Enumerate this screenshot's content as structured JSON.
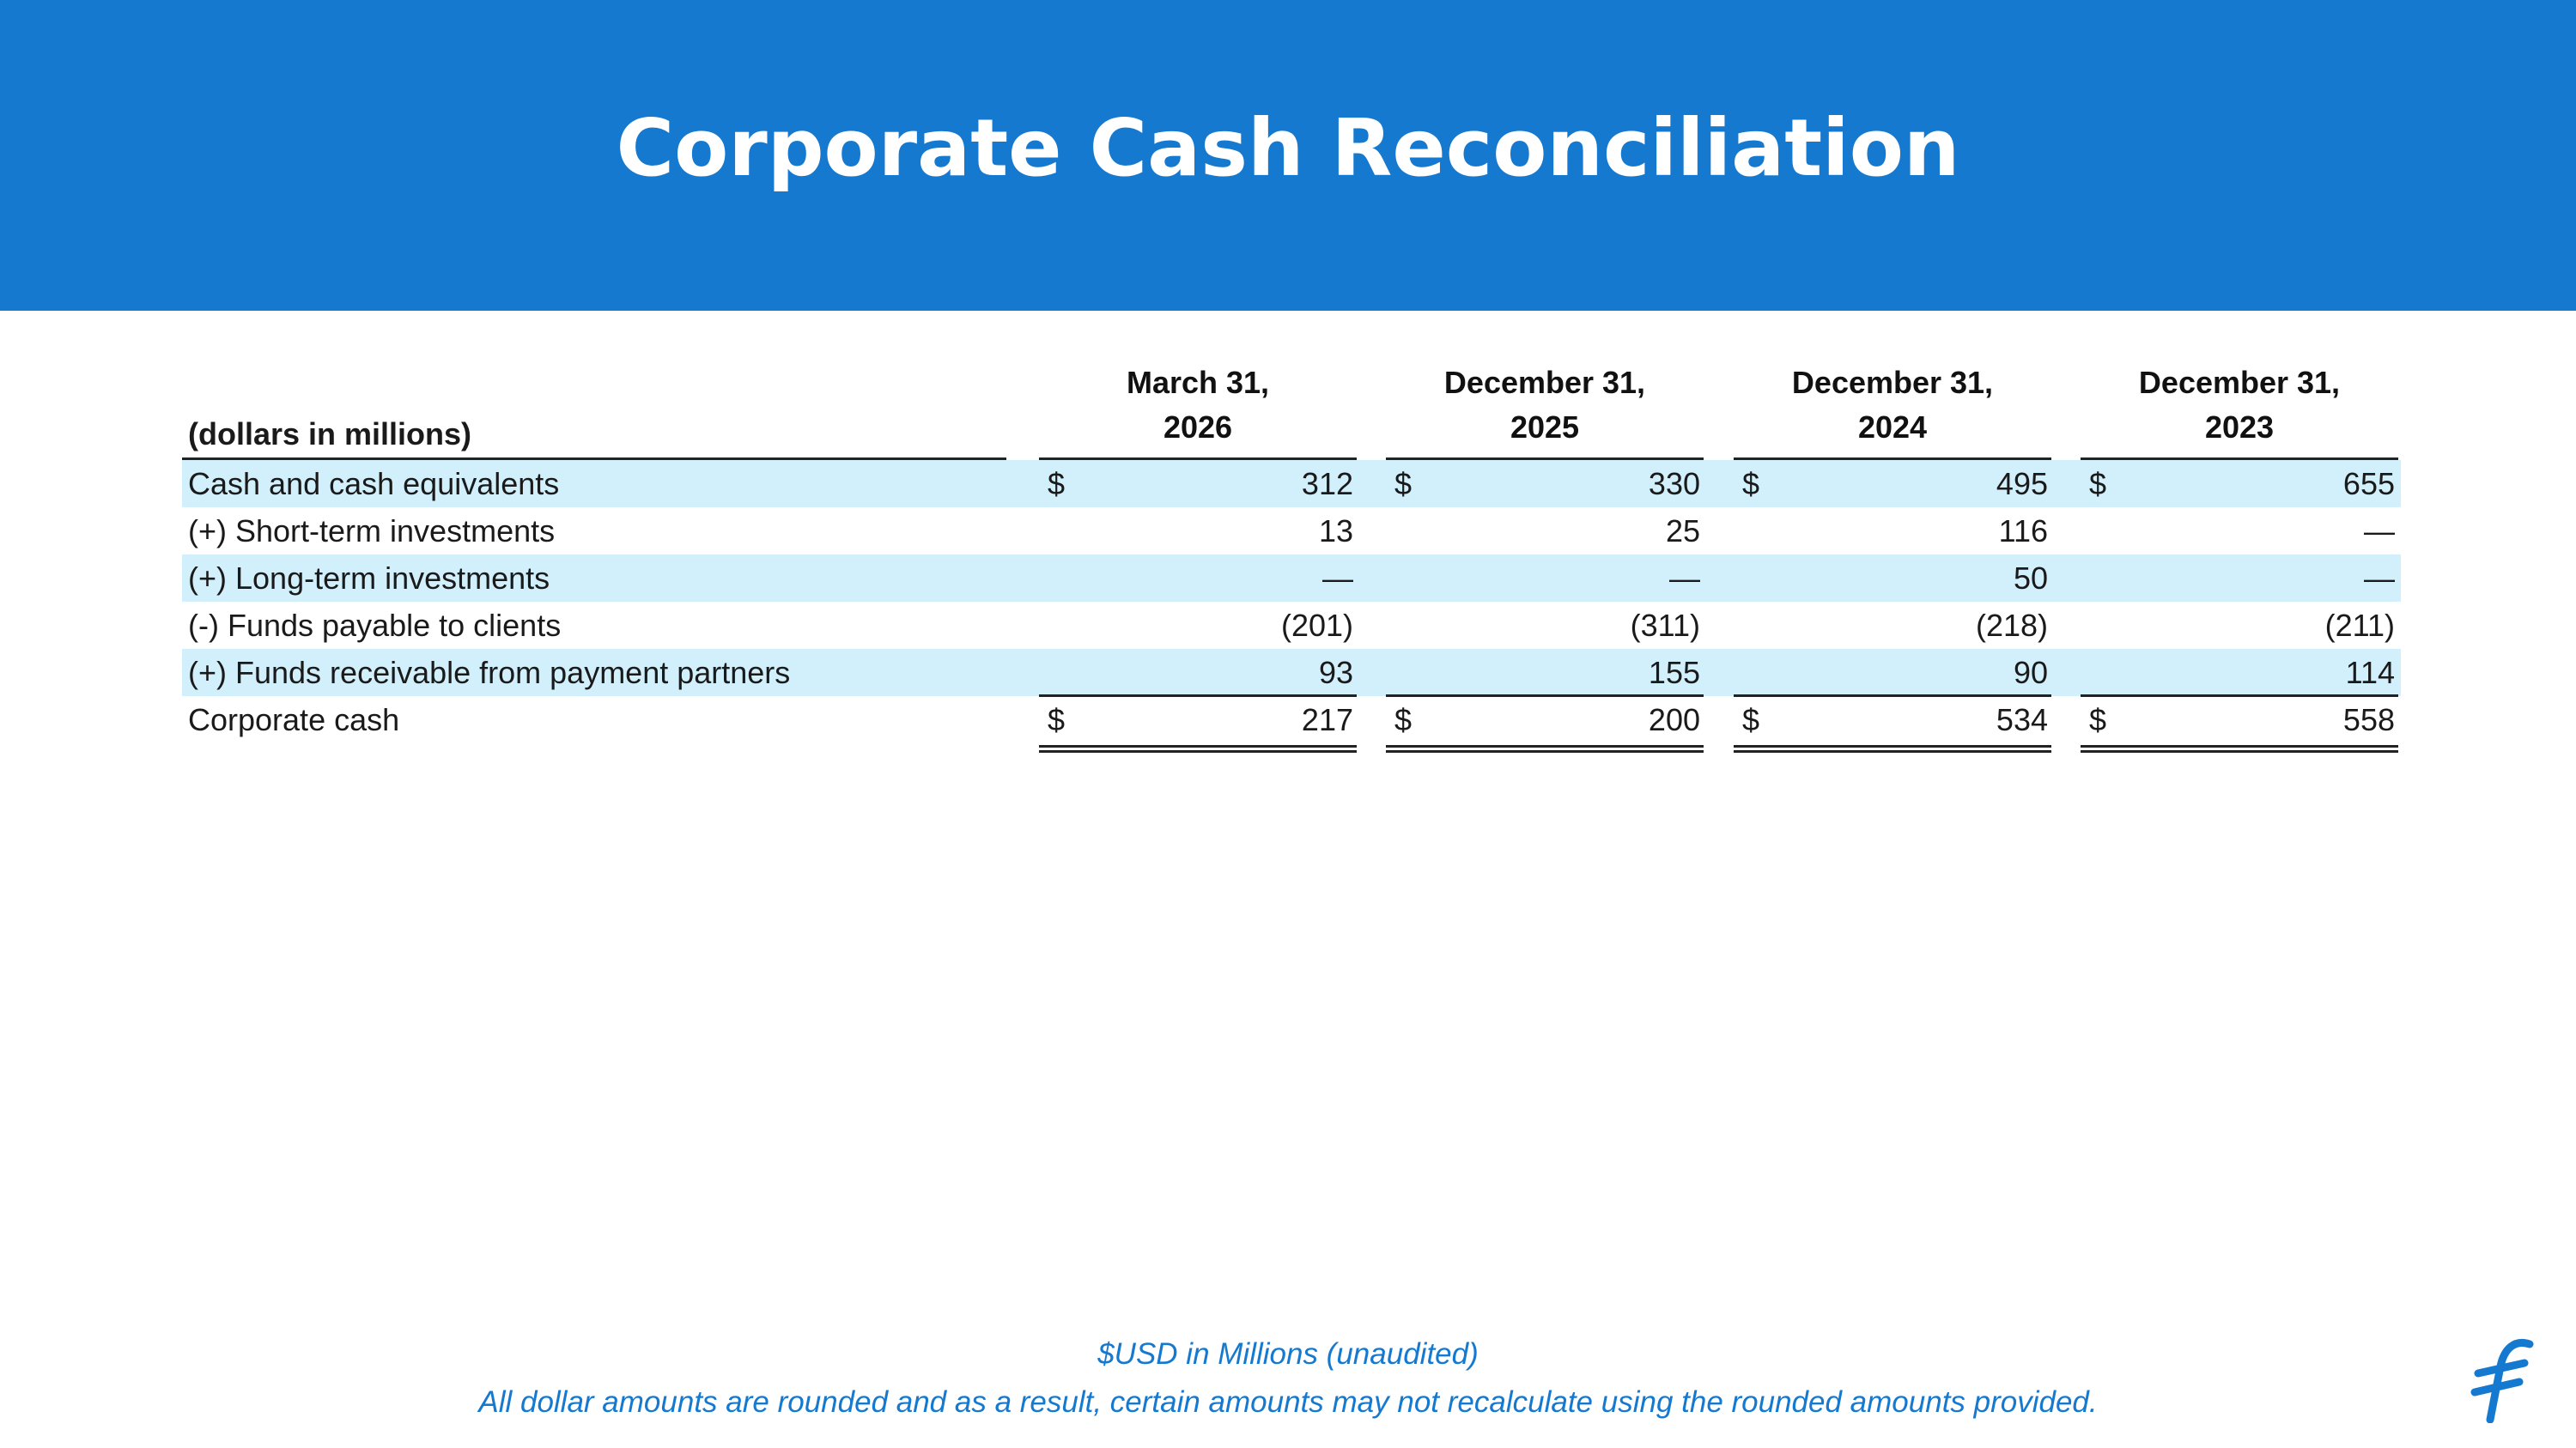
{
  "title": "Corporate Cash Reconciliation",
  "table": {
    "unit_label": "(dollars in millions)",
    "columns": [
      {
        "line1": "March 31,",
        "line2": "2026"
      },
      {
        "line1": "December 31,",
        "line2": "2025"
      },
      {
        "line1": "December 31,",
        "line2": "2024"
      },
      {
        "line1": "December 31,",
        "line2": "2023"
      }
    ],
    "currency_symbol": "$",
    "rows": [
      {
        "label": "Cash and cash equivalents",
        "values": [
          "312",
          "330",
          "495",
          "655"
        ],
        "shaded": true,
        "dollar": true
      },
      {
        "label": "(+) Short-term investments",
        "values": [
          "13",
          "25",
          "116",
          "—"
        ],
        "shaded": false,
        "dollar": false
      },
      {
        "label": "(+) Long-term investments",
        "values": [
          "—",
          "—",
          "50",
          "—"
        ],
        "shaded": true,
        "dollar": false
      },
      {
        "label": "(-) Funds payable to clients",
        "values": [
          "(201)",
          "(311)",
          "(218)",
          "(211)"
        ],
        "shaded": false,
        "dollar": false
      },
      {
        "label": "(+) Funds receivable from payment partners",
        "values": [
          "93",
          "155",
          "90",
          "114"
        ],
        "shaded": true,
        "dollar": false
      },
      {
        "label": "Corporate cash",
        "values": [
          "217",
          "200",
          "534",
          "558"
        ],
        "shaded": false,
        "dollar": true
      }
    ]
  },
  "footnotes": {
    "line1": "$USD in Millions (unaudited)",
    "line2": "All dollar amounts are rounded and as a result, certain amounts may not recalculate using the rounded amounts provided."
  },
  "colors": {
    "brand_blue": "#1679d0",
    "row_shade": "#d2f0fc"
  },
  "logo_icon": "brand-f-logo-icon"
}
